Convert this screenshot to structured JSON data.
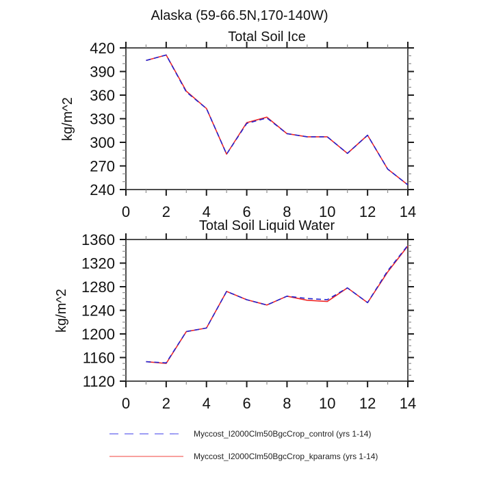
{
  "title": "Alaska (59-66.5N,170-140W)",
  "legend": {
    "entries": [
      {
        "label": "Myccost_I2000Clm50BgcCrop_control (yrs 1-14)",
        "color": "#7b7bf0",
        "style": "dashed"
      },
      {
        "label": "Myccost_I2000Clm50BgcCrop_kparams (yrs 1-14)",
        "color": "#f5827f",
        "style": "solid"
      }
    ]
  },
  "chart_data": [
    {
      "type": "line",
      "title": "Total Soil Ice",
      "ylabel": "kg/m^2",
      "xlim": [
        0,
        14
      ],
      "ylim": [
        240,
        420
      ],
      "xticks_major": [
        0,
        2,
        4,
        6,
        8,
        10,
        12,
        14
      ],
      "xticks_minor": [
        1,
        3,
        5,
        7,
        9,
        11,
        13
      ],
      "yticks_major": [
        240,
        270,
        300,
        330,
        360,
        390,
        420
      ],
      "yticks_minor_step": 10,
      "x": [
        1,
        2,
        3,
        4,
        5,
        6,
        7,
        8,
        9,
        10,
        11,
        12,
        13,
        14
      ],
      "series": [
        {
          "id": "control",
          "name": "Myccost_I2000Clm50BgcCrop_control (yrs 1-14)",
          "color": "#2222cf",
          "style": "dashed",
          "values": [
            404,
            411,
            364,
            343,
            285,
            324,
            331,
            311,
            307,
            307,
            286,
            309,
            266,
            246
          ]
        },
        {
          "id": "kparams",
          "name": "Myccost_I2000Clm50BgcCrop_kparams (yrs 1-14)",
          "color": "#ee2525",
          "style": "solid",
          "values": [
            404,
            411,
            365,
            343,
            285,
            325,
            332,
            311,
            307,
            307,
            286,
            309,
            266,
            246
          ]
        }
      ]
    },
    {
      "type": "line",
      "title": "Total Soil Liquid Water",
      "ylabel": "kg/m^2",
      "xlim": [
        0,
        14
      ],
      "ylim": [
        1120,
        1360
      ],
      "xticks_major": [
        0,
        2,
        4,
        6,
        8,
        10,
        12,
        14
      ],
      "xticks_minor": [
        1,
        3,
        5,
        7,
        9,
        11,
        13
      ],
      "yticks_major": [
        1120,
        1160,
        1200,
        1240,
        1280,
        1320,
        1360
      ],
      "yticks_minor_step": 10,
      "x": [
        1,
        2,
        3,
        4,
        5,
        6,
        7,
        8,
        9,
        10,
        11,
        12,
        13,
        14
      ],
      "series": [
        {
          "id": "control",
          "name": "Myccost_I2000Clm50BgcCrop_control (yrs 1-14)",
          "color": "#2222cf",
          "style": "dashed",
          "values": [
            1153,
            1151,
            1204,
            1210,
            1272,
            1258,
            1249,
            1264,
            1260,
            1258,
            1278,
            1253,
            1307,
            1350
          ]
        },
        {
          "id": "kparams",
          "name": "Myccost_I2000Clm50BgcCrop_kparams (yrs 1-14)",
          "color": "#ee2525",
          "style": "solid",
          "values": [
            1153,
            1150,
            1204,
            1210,
            1272,
            1258,
            1249,
            1264,
            1257,
            1255,
            1278,
            1253,
            1305,
            1349
          ]
        }
      ]
    }
  ]
}
